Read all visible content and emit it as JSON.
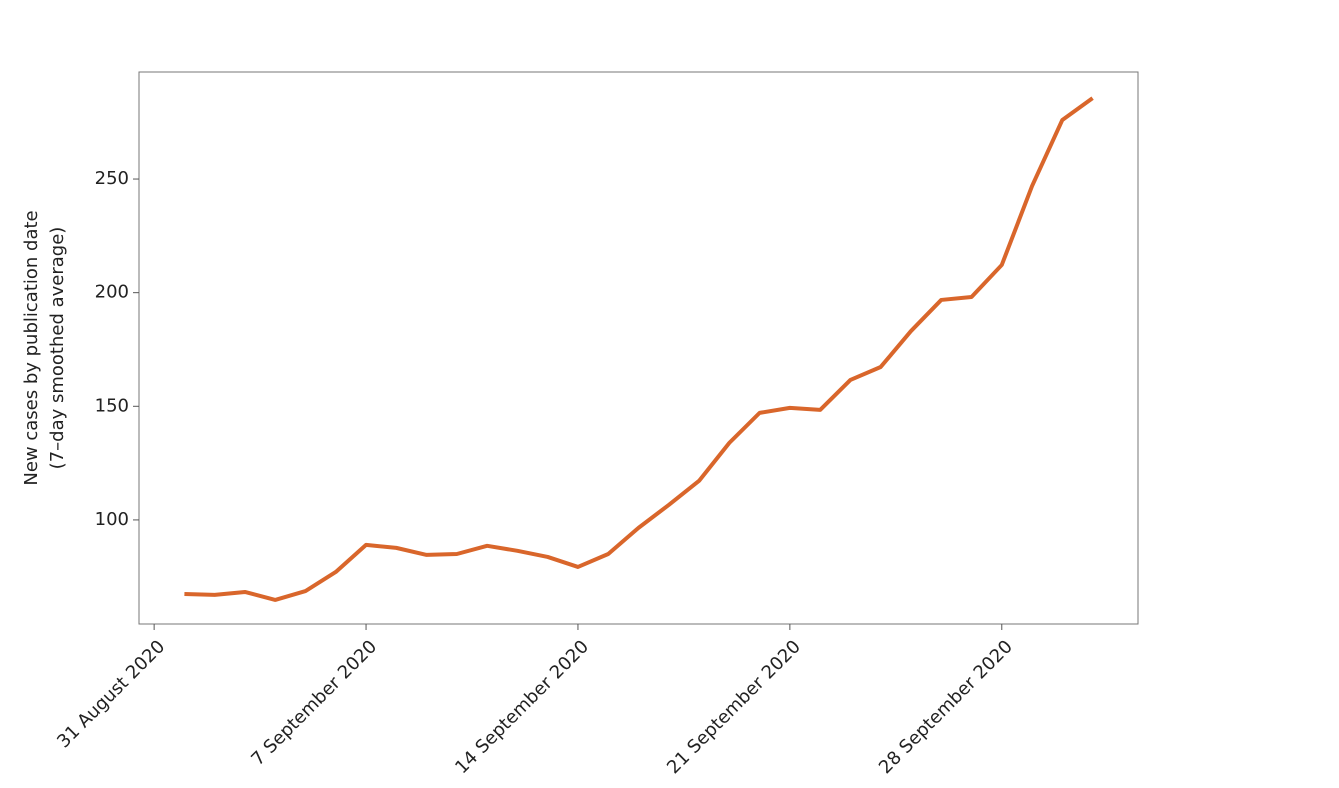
{
  "chart_data": {
    "type": "line",
    "y_label": [
      "New cases by publication date",
      "(7–day smoothed average)"
    ],
    "x": [
      "2020-09-01",
      "2020-09-02",
      "2020-09-03",
      "2020-09-04",
      "2020-09-05",
      "2020-09-06",
      "2020-09-07",
      "2020-09-08",
      "2020-09-09",
      "2020-09-10",
      "2020-09-11",
      "2020-09-12",
      "2020-09-13",
      "2020-09-14",
      "2020-09-15",
      "2020-09-16",
      "2020-09-17",
      "2020-09-18",
      "2020-09-19",
      "2020-09-20",
      "2020-09-21",
      "2020-09-22",
      "2020-09-23",
      "2020-09-24",
      "2020-09-25",
      "2020-09-26",
      "2020-09-27",
      "2020-09-28",
      "2020-09-29",
      "2020-09-30",
      "2020-10-01"
    ],
    "series": [
      {
        "color": "#d9662b",
        "values": [
          67.4,
          67,
          68.3,
          64.8,
          68.7,
          77.1,
          89,
          87.7,
          84.6,
          85,
          88.6,
          86.4,
          83.7,
          79.3,
          85,
          96.5,
          106.6,
          117.2,
          133.9,
          147.1,
          149.3,
          148.4,
          161.6,
          167.3,
          183.1,
          196.8,
          198.1,
          212.2,
          246.9,
          276,
          285.6
        ]
      }
    ],
    "xlim": [
      "2020-08-30T12:00:00Z",
      "2020-10-02T12:00:00Z"
    ],
    "xticks": [
      {
        "value": "2020-08-31",
        "label": "31 August 2020"
      },
      {
        "value": "2020-09-07",
        "label": "7 September 2020"
      },
      {
        "value": "2020-09-14",
        "label": "14 September 2020"
      },
      {
        "value": "2020-09-21",
        "label": "21 September 2020"
      },
      {
        "value": "2020-09-28",
        "label": "28 September 2020"
      }
    ],
    "ylim": [
      54.2,
      297.1
    ],
    "yticks": [
      100,
      150,
      200,
      250
    ]
  }
}
